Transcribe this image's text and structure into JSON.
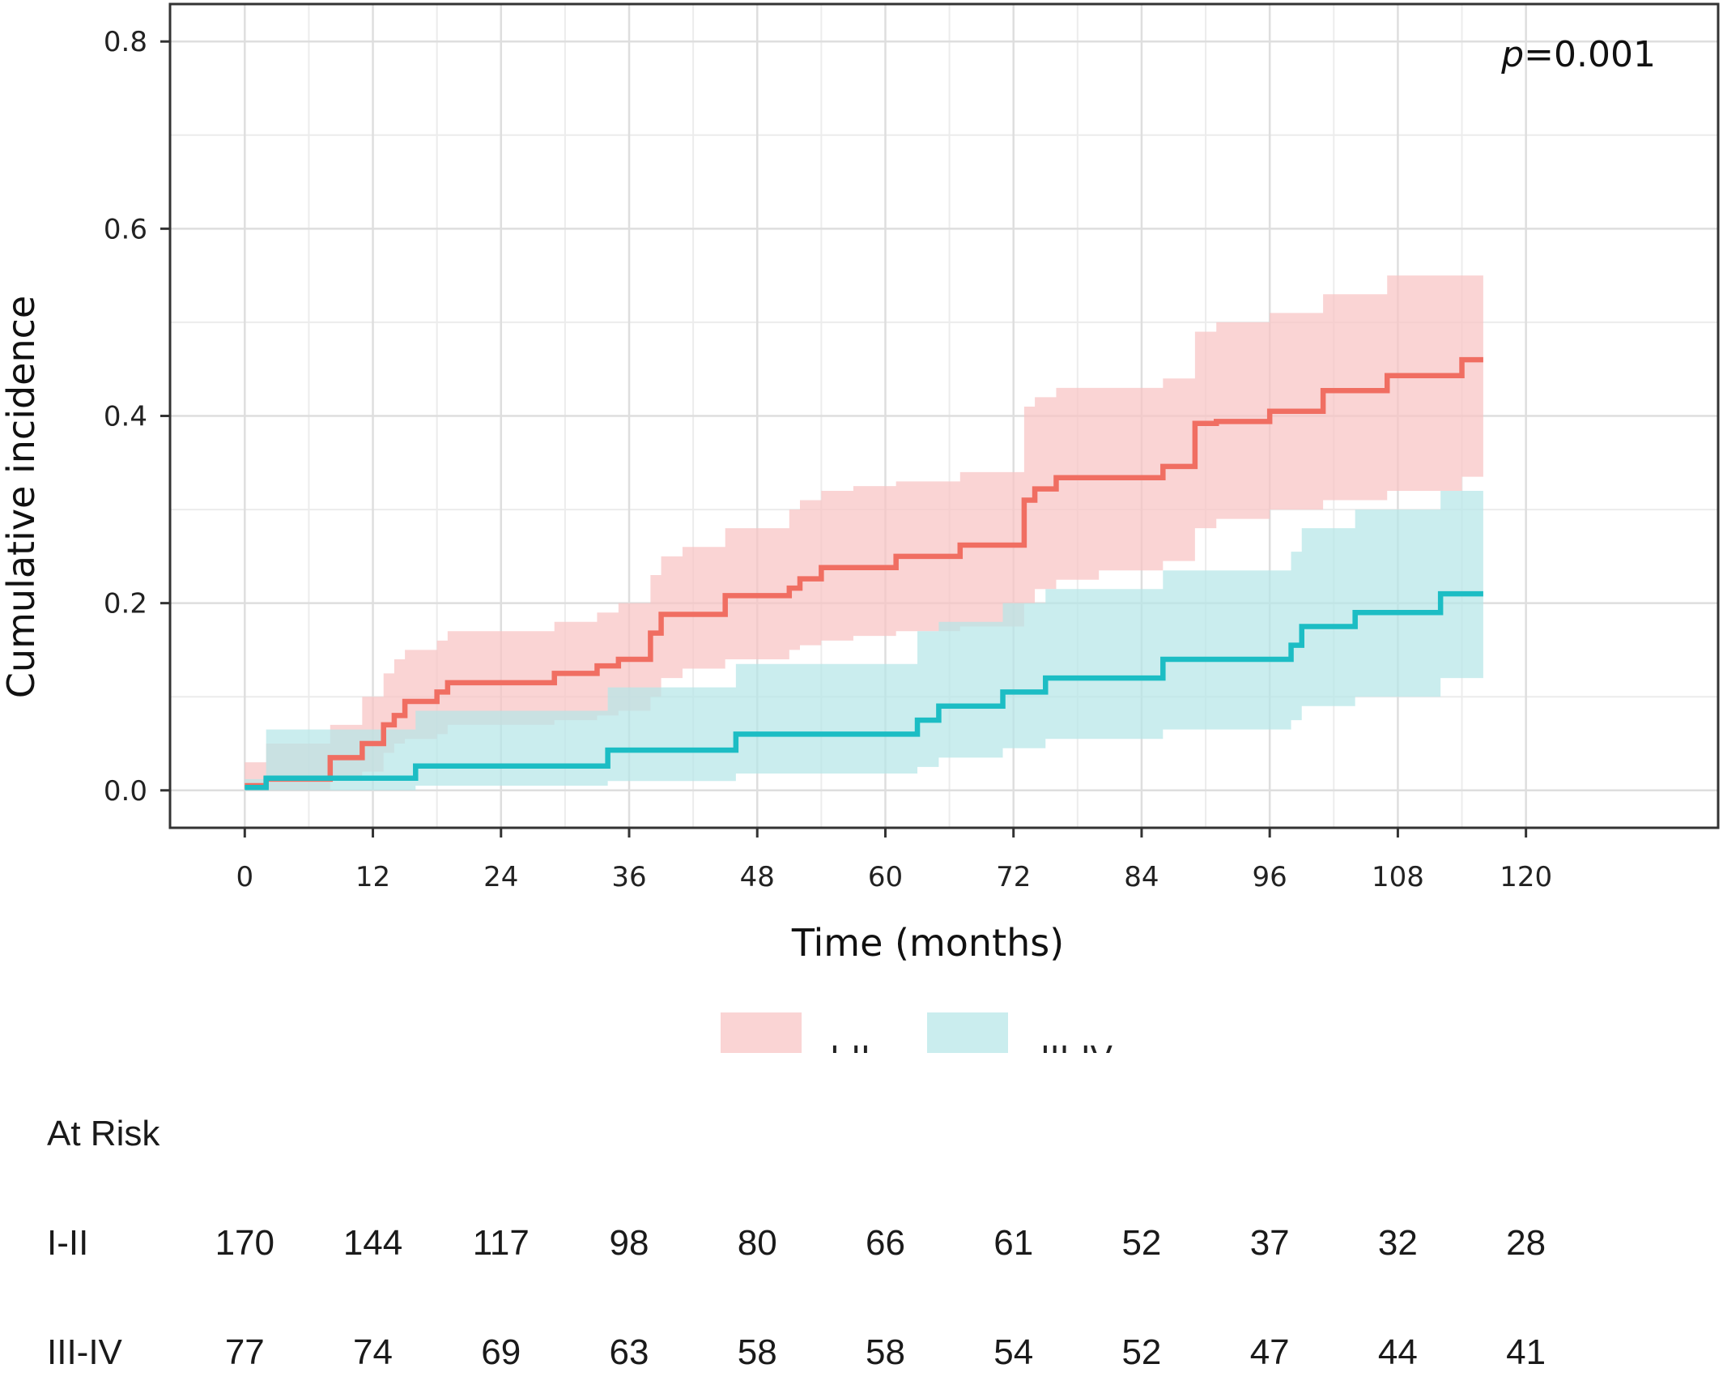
{
  "chart_data": {
    "type": "line",
    "title": "",
    "xlabel": "Time (months)",
    "ylabel": "Cumulative incidence",
    "xlim": [
      -7,
      138
    ],
    "ylim": [
      -0.04,
      0.84
    ],
    "x_ticks": [
      0,
      12,
      24,
      36,
      48,
      60,
      72,
      84,
      96,
      108,
      120
    ],
    "y_ticks": [
      0.0,
      0.2,
      0.4,
      0.6,
      0.8
    ],
    "y_tick_labels": [
      "0.0",
      "0.2",
      "0.4",
      "0.6",
      "0.8"
    ],
    "grid": true,
    "annotation": {
      "italic": "p",
      "rest": "=0.001"
    },
    "legend_position": "bottom",
    "series": [
      {
        "name": "I-II",
        "color": "#f06e62",
        "band_color": "#f8c4c4",
        "x": [
          0,
          2,
          8,
          11,
          13,
          14,
          15,
          18,
          19,
          29,
          33,
          35,
          38,
          39,
          41,
          45,
          51,
          52,
          54,
          57,
          61,
          67,
          73,
          74,
          76,
          80,
          86,
          89,
          91,
          96,
          101,
          107,
          114
        ],
        "y": [
          0.005,
          0.012,
          0.035,
          0.05,
          0.07,
          0.08,
          0.095,
          0.105,
          0.115,
          0.125,
          0.133,
          0.14,
          0.168,
          0.188,
          0.188,
          0.208,
          0.216,
          0.226,
          0.238,
          0.238,
          0.25,
          0.262,
          0.31,
          0.322,
          0.334,
          0.334,
          0.346,
          0.392,
          0.394,
          0.405,
          0.427,
          0.443,
          0.46
        ],
        "lower": [
          0.0,
          0.0,
          0.01,
          0.02,
          0.04,
          0.05,
          0.055,
          0.06,
          0.07,
          0.075,
          0.08,
          0.085,
          0.1,
          0.12,
          0.13,
          0.14,
          0.15,
          0.155,
          0.16,
          0.165,
          0.17,
          0.175,
          0.2,
          0.215,
          0.225,
          0.235,
          0.245,
          0.28,
          0.29,
          0.3,
          0.31,
          0.32,
          0.335
        ],
        "upper": [
          0.03,
          0.05,
          0.07,
          0.1,
          0.125,
          0.14,
          0.15,
          0.16,
          0.17,
          0.18,
          0.19,
          0.2,
          0.23,
          0.25,
          0.26,
          0.28,
          0.3,
          0.31,
          0.32,
          0.325,
          0.33,
          0.34,
          0.41,
          0.42,
          0.43,
          0.43,
          0.44,
          0.49,
          0.5,
          0.51,
          0.53,
          0.55,
          0.55
        ]
      },
      {
        "name": "III-IV",
        "color": "#1cbdc4",
        "band_color": "#b6e6e8",
        "x": [
          0,
          2,
          16,
          34,
          46,
          63,
          65,
          71,
          75,
          86,
          98,
          99,
          104,
          112
        ],
        "y": [
          0.003,
          0.013,
          0.026,
          0.043,
          0.06,
          0.075,
          0.09,
          0.105,
          0.12,
          0.14,
          0.155,
          0.175,
          0.19,
          0.21
        ],
        "lower": [
          0.0,
          0.0,
          0.005,
          0.01,
          0.018,
          0.025,
          0.035,
          0.045,
          0.055,
          0.065,
          0.075,
          0.09,
          0.1,
          0.12
        ],
        "upper": [
          0.012,
          0.065,
          0.085,
          0.11,
          0.135,
          0.17,
          0.18,
          0.2,
          0.215,
          0.235,
          0.255,
          0.28,
          0.3,
          0.32
        ]
      }
    ]
  },
  "at_risk": {
    "title": "At Risk",
    "rows": [
      {
        "label": "I-II",
        "values": [
          "170",
          "144",
          "117",
          "98",
          "80",
          "66",
          "61",
          "52",
          "37",
          "32",
          "28"
        ]
      },
      {
        "label": "III-IV",
        "values": [
          "77",
          "74",
          "69",
          "63",
          "58",
          "58",
          "54",
          "52",
          "47",
          "44",
          "41"
        ]
      }
    ]
  }
}
